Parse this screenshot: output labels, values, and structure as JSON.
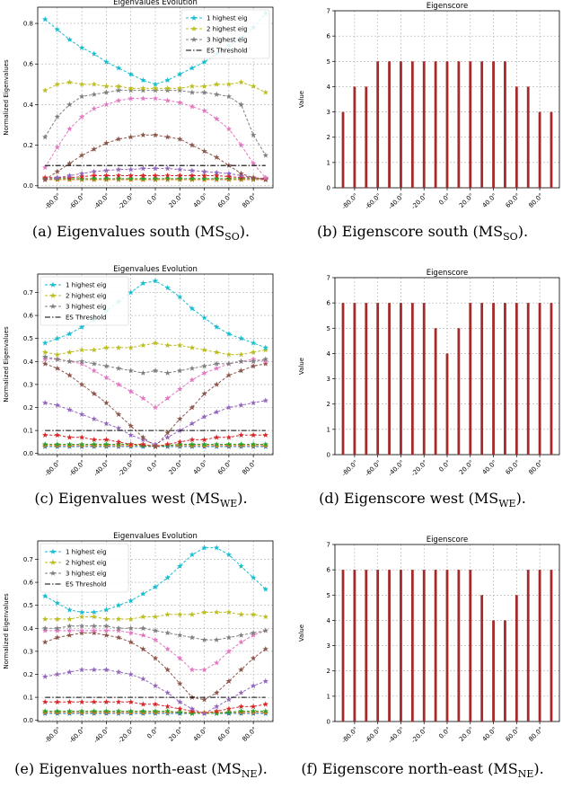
{
  "tick_labels_deg": [
    "-80.0°",
    "-60.0°",
    "-40.0°",
    "-20.0°",
    "0.0°",
    "20.0°",
    "40.0°",
    "60.0°",
    "80.0°"
  ],
  "captions": [
    {
      "prefix": "(a) Eigenvalues south (MS",
      "sub": "SO",
      "suffix": ")."
    },
    {
      "prefix": "(b) Eigenscore south (MS",
      "sub": "SO",
      "suffix": ")."
    },
    {
      "prefix": "(c) Eigenvalues west (MS",
      "sub": "WE",
      "suffix": ")."
    },
    {
      "prefix": "(d) Eigenscore west (MS",
      "sub": "WE",
      "suffix": ")."
    },
    {
      "prefix": "(e) Eigenvalues north-east (MS",
      "sub": "NE",
      "suffix": ")."
    },
    {
      "prefix": "(f) Eigenscore north-east (MS",
      "sub": "NE",
      "suffix": ")."
    }
  ],
  "chart_data": [
    {
      "type": "line",
      "title": "Eigenvalues Evolution",
      "ylabel": "Normalized Eigenvalues",
      "xlabel": "",
      "x": [
        -90,
        -80,
        -70,
        -60,
        -50,
        -40,
        -30,
        -20,
        -10,
        0,
        10,
        20,
        30,
        40,
        50,
        60,
        70,
        80,
        90
      ],
      "ylim": [
        -0.01,
        0.88
      ],
      "yticks": [
        0.0,
        0.2,
        0.4,
        0.6,
        0.8
      ],
      "grid": true,
      "legend": "top-right",
      "legend_entries": [
        "1 highest eig",
        "2 highest eig",
        "3 highest eig",
        "ES Threshold"
      ],
      "threshold": 0.1,
      "colors": [
        "#17becf",
        "#bcbd22",
        "#7f7f7f",
        "#e377c2",
        "#8c564b",
        "#9467bd",
        "#d62728",
        "#2ca02c",
        "#ff7f0e",
        "#1f77b4"
      ],
      "series": [
        {
          "values": [
            0.82,
            0.77,
            0.72,
            0.68,
            0.65,
            0.61,
            0.58,
            0.55,
            0.52,
            0.5,
            0.52,
            0.55,
            0.58,
            0.61,
            0.65,
            0.69,
            0.73,
            0.78,
            0.85
          ]
        },
        {
          "values": [
            0.47,
            0.5,
            0.51,
            0.5,
            0.5,
            0.49,
            0.49,
            0.48,
            0.48,
            0.48,
            0.48,
            0.48,
            0.49,
            0.49,
            0.5,
            0.5,
            0.51,
            0.49,
            0.46
          ]
        },
        {
          "values": [
            0.24,
            0.34,
            0.4,
            0.44,
            0.45,
            0.46,
            0.47,
            0.47,
            0.47,
            0.47,
            0.47,
            0.47,
            0.46,
            0.46,
            0.45,
            0.44,
            0.4,
            0.25,
            0.15
          ]
        },
        {
          "values": [
            0.09,
            0.19,
            0.28,
            0.34,
            0.38,
            0.4,
            0.42,
            0.43,
            0.43,
            0.43,
            0.42,
            0.41,
            0.39,
            0.37,
            0.33,
            0.28,
            0.2,
            0.11,
            0.04
          ]
        },
        {
          "values": [
            0.03,
            0.07,
            0.11,
            0.15,
            0.18,
            0.21,
            0.23,
            0.24,
            0.25,
            0.25,
            0.24,
            0.23,
            0.2,
            0.17,
            0.14,
            0.1,
            0.06,
            0.04,
            0.03
          ]
        },
        {
          "values": [
            0.03,
            0.04,
            0.05,
            0.06,
            0.07,
            0.075,
            0.08,
            0.08,
            0.085,
            0.085,
            0.085,
            0.08,
            0.075,
            0.07,
            0.065,
            0.06,
            0.05,
            0.04,
            0.03
          ]
        },
        {
          "values": [
            0.04,
            0.04,
            0.04,
            0.045,
            0.05,
            0.05,
            0.05,
            0.05,
            0.05,
            0.05,
            0.05,
            0.05,
            0.05,
            0.05,
            0.05,
            0.045,
            0.04,
            0.04,
            0.035
          ]
        },
        {
          "values": [
            0.035,
            0.035,
            0.035,
            0.035,
            0.035,
            0.035,
            0.035,
            0.035,
            0.035,
            0.035,
            0.035,
            0.035,
            0.035,
            0.035,
            0.035,
            0.035,
            0.035,
            0.035,
            0.035
          ]
        },
        {
          "values": [
            0.03,
            0.03,
            0.03,
            0.03,
            0.03,
            0.03,
            0.03,
            0.03,
            0.03,
            0.03,
            0.03,
            0.03,
            0.03,
            0.03,
            0.03,
            0.03,
            0.03,
            0.03,
            0.03
          ]
        },
        {
          "values": [
            0.03,
            0.03,
            0.03,
            0.03,
            0.03,
            0.03,
            0.03,
            0.03,
            0.03,
            0.03,
            0.03,
            0.03,
            0.03,
            0.03,
            0.03,
            0.03,
            0.03,
            0.03,
            0.03
          ]
        }
      ]
    },
    {
      "type": "bar",
      "title": "Eigenscore",
      "ylabel": "Value",
      "xlabel": "",
      "x": [
        -90,
        -80,
        -70,
        -60,
        -50,
        -40,
        -30,
        -20,
        -10,
        0,
        10,
        20,
        30,
        40,
        50,
        60,
        70,
        80,
        90
      ],
      "values": [
        3,
        4,
        4,
        5,
        5,
        5,
        5,
        5,
        5,
        5,
        5,
        5,
        5,
        5,
        5,
        4,
        4,
        3,
        3
      ],
      "ylim": [
        0,
        7
      ],
      "yticks": [
        0,
        1,
        2,
        3,
        4,
        5,
        6,
        7
      ],
      "grid": true,
      "color": "#a52a2a"
    },
    {
      "type": "line",
      "title": "Eigenvalues Evolution",
      "ylabel": "Normalized Eigenvalues",
      "xlabel": "",
      "x": [
        -90,
        -80,
        -70,
        -60,
        -50,
        -40,
        -30,
        -20,
        -10,
        0,
        10,
        20,
        30,
        40,
        50,
        60,
        70,
        80,
        90
      ],
      "ylim": [
        -0.005,
        0.78
      ],
      "yticks": [
        0.0,
        0.1,
        0.2,
        0.3,
        0.4,
        0.5,
        0.6,
        0.7
      ],
      "grid": true,
      "legend": "top-left",
      "legend_entries": [
        "1 highest eig",
        "2 highest eig",
        "3 highest eig",
        "ES Threshold"
      ],
      "threshold": 0.1,
      "colors": [
        "#17becf",
        "#bcbd22",
        "#7f7f7f",
        "#e377c2",
        "#8c564b",
        "#9467bd",
        "#d62728",
        "#2ca02c",
        "#ff7f0e",
        "#1f77b4"
      ],
      "series": [
        {
          "values": [
            0.48,
            0.5,
            0.52,
            0.55,
            0.58,
            0.62,
            0.66,
            0.7,
            0.74,
            0.75,
            0.72,
            0.68,
            0.63,
            0.59,
            0.55,
            0.52,
            0.5,
            0.48,
            0.46
          ]
        },
        {
          "values": [
            0.44,
            0.43,
            0.44,
            0.45,
            0.45,
            0.46,
            0.46,
            0.46,
            0.47,
            0.48,
            0.47,
            0.47,
            0.46,
            0.45,
            0.44,
            0.43,
            0.43,
            0.44,
            0.45
          ]
        },
        {
          "values": [
            0.42,
            0.41,
            0.4,
            0.4,
            0.39,
            0.38,
            0.37,
            0.36,
            0.35,
            0.36,
            0.35,
            0.36,
            0.37,
            0.38,
            0.39,
            0.39,
            0.4,
            0.4,
            0.41
          ]
        },
        {
          "values": [
            0.41,
            0.41,
            0.4,
            0.39,
            0.36,
            0.33,
            0.3,
            0.27,
            0.24,
            0.2,
            0.24,
            0.28,
            0.32,
            0.35,
            0.37,
            0.39,
            0.4,
            0.41,
            0.4
          ]
        },
        {
          "values": [
            0.39,
            0.37,
            0.34,
            0.3,
            0.26,
            0.22,
            0.17,
            0.12,
            0.07,
            0.03,
            0.09,
            0.15,
            0.2,
            0.26,
            0.3,
            0.34,
            0.36,
            0.38,
            0.39
          ]
        },
        {
          "values": [
            0.22,
            0.21,
            0.19,
            0.17,
            0.15,
            0.13,
            0.11,
            0.08,
            0.06,
            0.04,
            0.07,
            0.1,
            0.13,
            0.16,
            0.18,
            0.2,
            0.21,
            0.22,
            0.23
          ]
        },
        {
          "values": [
            0.08,
            0.08,
            0.07,
            0.07,
            0.06,
            0.06,
            0.05,
            0.04,
            0.04,
            0.03,
            0.04,
            0.05,
            0.06,
            0.06,
            0.07,
            0.07,
            0.08,
            0.08,
            0.08
          ]
        },
        {
          "values": [
            0.04,
            0.04,
            0.04,
            0.04,
            0.04,
            0.04,
            0.04,
            0.04,
            0.035,
            0.03,
            0.035,
            0.04,
            0.04,
            0.04,
            0.04,
            0.04,
            0.04,
            0.04,
            0.04
          ]
        },
        {
          "values": [
            0.035,
            0.035,
            0.035,
            0.035,
            0.035,
            0.035,
            0.035,
            0.035,
            0.035,
            0.035,
            0.035,
            0.035,
            0.035,
            0.035,
            0.035,
            0.035,
            0.035,
            0.035,
            0.035
          ]
        },
        {
          "values": [
            0.03,
            0.03,
            0.03,
            0.03,
            0.03,
            0.03,
            0.03,
            0.03,
            0.03,
            0.03,
            0.03,
            0.03,
            0.03,
            0.03,
            0.03,
            0.03,
            0.03,
            0.03,
            0.03
          ]
        }
      ]
    },
    {
      "type": "bar",
      "title": "Eigenscore",
      "ylabel": "Value",
      "xlabel": "",
      "x": [
        -90,
        -80,
        -70,
        -60,
        -50,
        -40,
        -30,
        -20,
        -10,
        0,
        10,
        20,
        30,
        40,
        50,
        60,
        70,
        80,
        90
      ],
      "values": [
        6,
        6,
        6,
        6,
        6,
        6,
        6,
        6,
        5,
        4,
        5,
        6,
        6,
        6,
        6,
        6,
        6,
        6,
        6
      ],
      "ylim": [
        0,
        7
      ],
      "yticks": [
        0,
        1,
        2,
        3,
        4,
        5,
        6,
        7
      ],
      "grid": true,
      "color": "#a52a2a"
    },
    {
      "type": "line",
      "title": "Eigenvalues Evolution",
      "ylabel": "Normalized Eigenvalues",
      "xlabel": "",
      "x": [
        -90,
        -80,
        -70,
        -60,
        -50,
        -40,
        -30,
        -20,
        -10,
        0,
        10,
        20,
        30,
        40,
        50,
        60,
        70,
        80,
        90
      ],
      "ylim": [
        -0.005,
        0.78
      ],
      "yticks": [
        0.0,
        0.1,
        0.2,
        0.3,
        0.4,
        0.5,
        0.6,
        0.7
      ],
      "grid": true,
      "legend": "top-left",
      "legend_entries": [
        "1 highest eig",
        "2 highest eig",
        "3 highest eig",
        "ES Threshold"
      ],
      "threshold": 0.1,
      "colors": [
        "#17becf",
        "#bcbd22",
        "#7f7f7f",
        "#e377c2",
        "#8c564b",
        "#9467bd",
        "#d62728",
        "#2ca02c",
        "#ff7f0e",
        "#1f77b4"
      ],
      "series": [
        {
          "values": [
            0.54,
            0.51,
            0.48,
            0.47,
            0.47,
            0.48,
            0.5,
            0.52,
            0.55,
            0.58,
            0.62,
            0.67,
            0.72,
            0.75,
            0.75,
            0.72,
            0.67,
            0.62,
            0.57
          ]
        },
        {
          "values": [
            0.44,
            0.44,
            0.44,
            0.45,
            0.45,
            0.44,
            0.44,
            0.44,
            0.45,
            0.45,
            0.46,
            0.46,
            0.46,
            0.47,
            0.47,
            0.47,
            0.46,
            0.46,
            0.45
          ]
        },
        {
          "values": [
            0.4,
            0.4,
            0.41,
            0.41,
            0.41,
            0.41,
            0.4,
            0.4,
            0.4,
            0.39,
            0.38,
            0.37,
            0.36,
            0.35,
            0.35,
            0.36,
            0.37,
            0.38,
            0.39
          ]
        },
        {
          "values": [
            0.39,
            0.39,
            0.39,
            0.39,
            0.39,
            0.39,
            0.39,
            0.38,
            0.37,
            0.35,
            0.31,
            0.27,
            0.22,
            0.22,
            0.25,
            0.3,
            0.34,
            0.37,
            0.39
          ]
        },
        {
          "values": [
            0.34,
            0.36,
            0.37,
            0.38,
            0.38,
            0.37,
            0.36,
            0.34,
            0.31,
            0.27,
            0.22,
            0.16,
            0.1,
            0.09,
            0.12,
            0.17,
            0.22,
            0.27,
            0.31
          ]
        },
        {
          "values": [
            0.19,
            0.2,
            0.21,
            0.22,
            0.22,
            0.22,
            0.21,
            0.2,
            0.18,
            0.15,
            0.12,
            0.08,
            0.05,
            0.03,
            0.06,
            0.09,
            0.12,
            0.15,
            0.17
          ]
        },
        {
          "values": [
            0.08,
            0.08,
            0.08,
            0.08,
            0.08,
            0.08,
            0.08,
            0.08,
            0.07,
            0.07,
            0.06,
            0.05,
            0.04,
            0.03,
            0.04,
            0.05,
            0.06,
            0.06,
            0.07
          ]
        },
        {
          "values": [
            0.04,
            0.04,
            0.04,
            0.04,
            0.04,
            0.04,
            0.04,
            0.04,
            0.04,
            0.04,
            0.04,
            0.035,
            0.03,
            0.03,
            0.03,
            0.035,
            0.04,
            0.04,
            0.04
          ]
        },
        {
          "values": [
            0.035,
            0.035,
            0.035,
            0.035,
            0.035,
            0.035,
            0.035,
            0.035,
            0.035,
            0.035,
            0.035,
            0.035,
            0.035,
            0.035,
            0.035,
            0.035,
            0.035,
            0.035,
            0.035
          ]
        },
        {
          "values": [
            0.03,
            0.03,
            0.03,
            0.03,
            0.03,
            0.03,
            0.03,
            0.03,
            0.03,
            0.03,
            0.03,
            0.03,
            0.03,
            0.03,
            0.03,
            0.03,
            0.03,
            0.03,
            0.03
          ]
        }
      ]
    },
    {
      "type": "bar",
      "title": "Eigenscore",
      "ylabel": "Value",
      "xlabel": "",
      "x": [
        -90,
        -80,
        -70,
        -60,
        -50,
        -40,
        -30,
        -20,
        -10,
        0,
        10,
        20,
        30,
        40,
        50,
        60,
        70,
        80,
        90
      ],
      "values": [
        6,
        6,
        6,
        6,
        6,
        6,
        6,
        6,
        6,
        6,
        6,
        6,
        5,
        4,
        4,
        5,
        6,
        6,
        6
      ],
      "ylim": [
        0,
        7
      ],
      "yticks": [
        0,
        1,
        2,
        3,
        4,
        5,
        6,
        7
      ],
      "grid": true,
      "color": "#a52a2a"
    }
  ]
}
